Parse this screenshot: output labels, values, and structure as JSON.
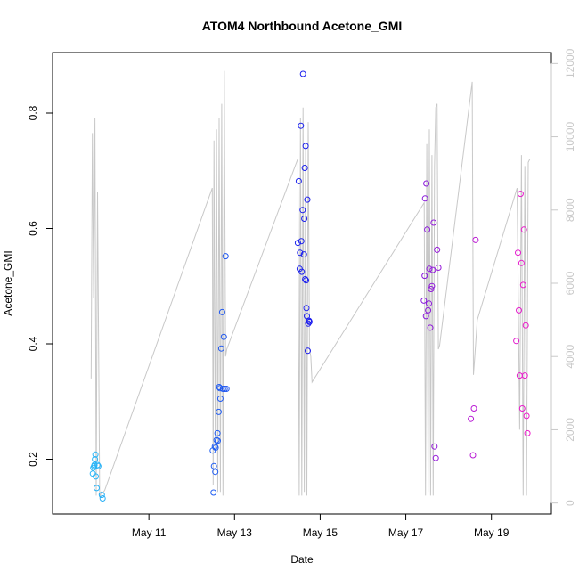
{
  "chart_data": {
    "type": "scatter",
    "title": "ATOM4 Northbound Acetone_GMI",
    "xlabel": "Date",
    "ylabel": "Acetone_GMI",
    "xlim": [
      8.75,
      20.4
    ],
    "ylim": [
      0.105,
      0.905
    ],
    "y2lim": [
      -300,
      12300
    ],
    "x_ticks": [
      {
        "value": 11,
        "label": "May 11"
      },
      {
        "value": 13,
        "label": "May 13"
      },
      {
        "value": 15,
        "label": "May 15"
      },
      {
        "value": 17,
        "label": "May 17"
      },
      {
        "value": 19,
        "label": "May 19"
      }
    ],
    "y_ticks": [
      {
        "value": 0.2,
        "label": "0.2"
      },
      {
        "value": 0.4,
        "label": "0.4"
      },
      {
        "value": 0.6,
        "label": "0.6"
      },
      {
        "value": 0.8,
        "label": "0.8"
      }
    ],
    "y2_ticks": [
      {
        "value": 0,
        "label": "0"
      },
      {
        "value": 2000,
        "label": "2000"
      },
      {
        "value": 4000,
        "label": "4000"
      },
      {
        "value": 6000,
        "label": "6000"
      },
      {
        "value": 8000,
        "label": "8000"
      },
      {
        "value": 10000,
        "label": "10000"
      },
      {
        "value": 12000,
        "label": "12000"
      }
    ],
    "colors": {
      "altitude_line": "#c8c8c8",
      "ramp_start": "#29b6f6",
      "ramp_mid": "#1a1aee",
      "ramp_end": "#ee1acb",
      "right_axis": "#c8c8c8"
    },
    "altitude": {
      "x": [
        9.65,
        9.68,
        9.71,
        9.74,
        9.77,
        9.8,
        9.85,
        9.89,
        9.93,
        9.97,
        12.48,
        12.5,
        12.52,
        12.55,
        12.58,
        12.61,
        12.64,
        12.67,
        12.7,
        12.73,
        12.76,
        12.79,
        12.82,
        14.48,
        14.51,
        14.54,
        14.57,
        14.6,
        14.63,
        14.66,
        14.69,
        14.72,
        14.75,
        14.78,
        14.81,
        17.43,
        17.46,
        17.49,
        17.52,
        17.55,
        17.58,
        17.61,
        17.64,
        17.67,
        17.7,
        17.73,
        17.76,
        17.79,
        18.55,
        18.58,
        18.61,
        18.64,
        18.67,
        19.6,
        19.66,
        19.7,
        19.74,
        19.78,
        19.82,
        19.86,
        19.9
      ],
      "values": [
        3400,
        10100,
        5600,
        10500,
        200,
        8500,
        150,
        300,
        280,
        350,
        8600,
        500,
        9900,
        1500,
        10200,
        300,
        10500,
        300,
        10900,
        200,
        11800,
        4000,
        4200,
        9400,
        200,
        10500,
        200,
        10800,
        300,
        9800,
        200,
        10400,
        4200,
        4000,
        3300,
        8200,
        200,
        9800,
        300,
        10200,
        200,
        9500,
        200,
        9200,
        10800,
        10900,
        4200,
        4300,
        11500,
        3500,
        4000,
        4500,
        5000,
        8600,
        2000,
        9500,
        200,
        9200,
        200,
        9300,
        9400
      ]
    },
    "series": [
      {
        "x": [
          9.69,
          9.7,
          9.72,
          9.73,
          9.74,
          9.75,
          9.76,
          9.78,
          9.8,
          9.82,
          9.9,
          9.92
        ],
        "y": [
          0.175,
          0.185,
          0.188,
          0.19,
          0.2,
          0.208,
          0.17,
          0.15,
          0.19,
          0.188,
          0.138,
          0.132
        ]
      },
      {
        "x": [
          12.49,
          12.51,
          12.52,
          12.54,
          12.55,
          12.56,
          12.58,
          12.6,
          12.61,
          12.63,
          12.64,
          12.66,
          12.67,
          12.69,
          12.71,
          12.73,
          12.75,
          12.77,
          12.79,
          12.81
        ],
        "y": [
          0.215,
          0.142,
          0.188,
          0.222,
          0.178,
          0.22,
          0.233,
          0.245,
          0.232,
          0.282,
          0.325,
          0.323,
          0.305,
          0.392,
          0.455,
          0.322,
          0.412,
          0.322,
          0.552,
          0.322
        ]
      },
      {
        "x": [
          14.48,
          14.5,
          14.52,
          14.53,
          14.55,
          14.56,
          14.57,
          14.59,
          14.6,
          14.62,
          14.63,
          14.64,
          14.65,
          14.66,
          14.67,
          14.68,
          14.69,
          14.7,
          14.71,
          14.72,
          14.73,
          14.74,
          14.75
        ],
        "y": [
          0.575,
          0.682,
          0.53,
          0.558,
          0.778,
          0.578,
          0.525,
          0.632,
          0.868,
          0.555,
          0.617,
          0.705,
          0.512,
          0.743,
          0.51,
          0.462,
          0.448,
          0.65,
          0.388,
          0.435,
          0.44,
          0.44,
          0.438
        ]
      },
      {
        "x": [
          17.42,
          17.44,
          17.45,
          17.47,
          17.48,
          17.5,
          17.52,
          17.54,
          17.55,
          17.57,
          17.59,
          17.61,
          17.63,
          17.65,
          17.67,
          17.7,
          17.73,
          17.76
        ],
        "y": [
          0.475,
          0.518,
          0.652,
          0.448,
          0.678,
          0.598,
          0.458,
          0.47,
          0.53,
          0.428,
          0.495,
          0.5,
          0.528,
          0.61,
          0.222,
          0.202,
          0.563,
          0.532
        ]
      },
      {
        "x": [
          18.52,
          18.57,
          18.59,
          18.63
        ],
        "y": [
          0.27,
          0.207,
          0.288,
          0.58
        ]
      },
      {
        "x": [
          19.58,
          19.62,
          19.64,
          19.66,
          19.68,
          19.7,
          19.72,
          19.74,
          19.76,
          19.78,
          19.8,
          19.82,
          19.84
        ],
        "y": [
          0.405,
          0.558,
          0.458,
          0.345,
          0.66,
          0.54,
          0.288,
          0.502,
          0.598,
          0.345,
          0.432,
          0.275,
          0.245
        ]
      }
    ]
  }
}
